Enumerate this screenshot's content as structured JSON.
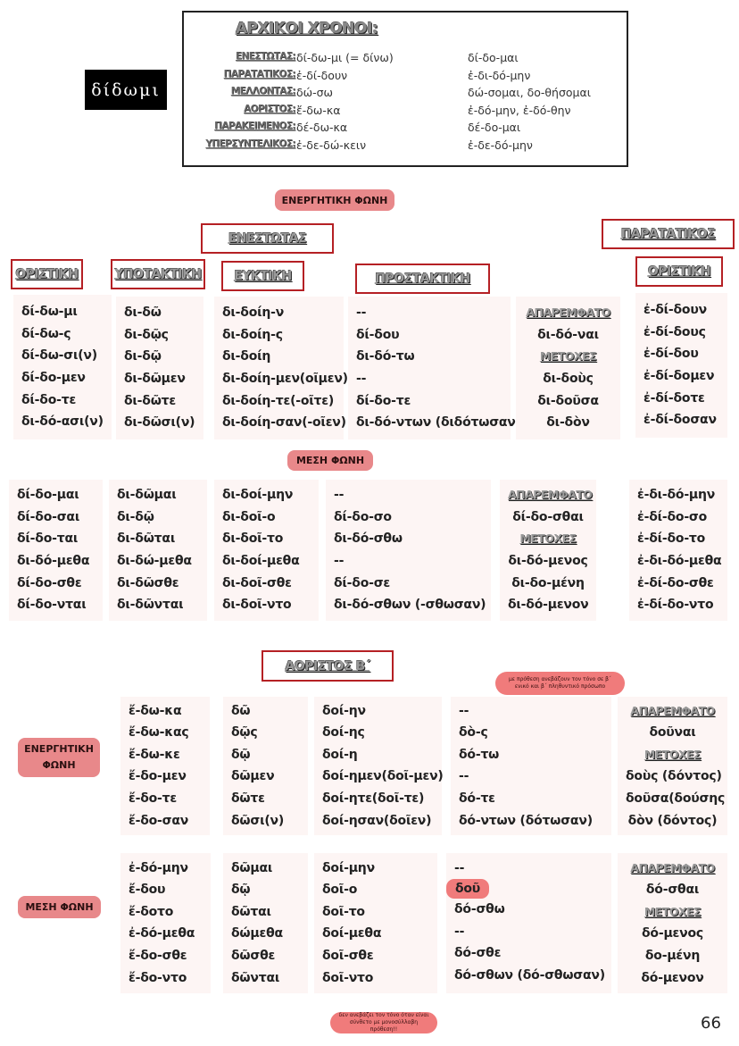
{
  "verb": "δίδωμι",
  "principal_parts": {
    "title": "ΑΡΧΙΚΟΙ ΧΡΟΝΟΙ:",
    "rows": [
      {
        "tense": "ΕΝΕΣΤΩΤΑΣ:",
        "active": "δί-δω-μι (= δίνω)",
        "middle": "δί-δο-μαι"
      },
      {
        "tense": "ΠΑΡΑΤΑΤΙΚΟΣ:",
        "active": "ἐ-δί-δουν",
        "middle": "ἐ-δι-δό-μην"
      },
      {
        "tense": "ΜΕΛΛΟΝΤΑΣ:",
        "active": "δώ-σω",
        "middle": "δώ-σομαι, δο-θήσομαι"
      },
      {
        "tense": "ΑΟΡΙΣΤΟΣ:",
        "active": "ἔ-δω-κα",
        "middle": "ἐ-δό-μην, ἐ-δό-θην"
      },
      {
        "tense": "ΠΑΡΑΚΕΙΜΕΝΟΣ:",
        "active": "δέ-δω-κα",
        "middle": "δέ-δο-μαι"
      },
      {
        "tense": "ΥΠΕΡΣΥΝΤΕΛΙΚΟΣ:",
        "active": "ἐ-δε-δώ-κειν",
        "middle": "ἐ-δε-δό-μην"
      }
    ]
  },
  "labels": {
    "active_voice": "ΕΝΕΡΓΗΤΙΚΗ ΦΩΝΗ",
    "middle_voice": "ΜΕΣΗ  ΦΩΝΗ",
    "middle_voice_short": "ΜΕΣΗ ΦΩΝΗ",
    "present": "ΕΝΕΣΤΩΤΑΣ",
    "imperfect": "ΠΑΡΑΤΑΤΙΚΟΣ",
    "aorist2": "ΑΟΡΙΣΤΟΣ Β΄",
    "indicative": "ΟΡΙΣΤΙΚΗ",
    "subjunctive": "ΥΠΟΤΑΚΤΙΚΗ",
    "optative": "ΕΥΚΤΙΚΗ",
    "imperative": "ΠΡΟΣΤΑΚΤΙΚΗ"
  },
  "present_active": {
    "indicative": [
      "δί-δω-μι",
      "δί-δω-ς",
      "δί-δω-σι(ν)",
      "δί-δο-μεν",
      "δί-δο-τε",
      "δι-δό-ασι(ν)"
    ],
    "subjunctive": [
      "δι-δῶ",
      "δι-δῷς",
      "δι-δῷ",
      "δι-δῶμεν",
      "δι-δῶτε",
      "δι-δῶσι(ν)"
    ],
    "optative": [
      "δι-δοίη-ν",
      "δι-δοίη-ς",
      "δι-δοίη",
      "δι-δοίη-μεν(οῖμεν)",
      "δι-δοίη-τε(-οῖτε)",
      "δι-δοίη-σαν(-οῖεν)"
    ],
    "imperative": [
      "--",
      "δί-δου",
      "δι-δό-τω",
      "--",
      "δί-δο-τε",
      "δι-δό-ντων (διδότωσαν)"
    ],
    "nonfinite": [
      "ΑΠΑΡΕΜΦΑΤΟ",
      "δι-δό-ναι",
      "ΜΕΤΟΧΕΣ",
      "δι-δοὺς",
      "δι-δοῦσα",
      "δι-δὸν"
    ]
  },
  "imperfect_active": [
    "ἐ-δί-δουν",
    "ἐ-δί-δους",
    "ἐ-δί-δου",
    "ἐ-δί-δομεν",
    "ἐ-δί-δοτε",
    "ἐ-δί-δοσαν"
  ],
  "present_middle": {
    "indicative": [
      "δί-δο-μαι",
      "δί-δο-σαι",
      "δί-δο-ται",
      "δι-δό-μεθα",
      "δί-δο-σθε",
      "δί-δο-νται"
    ],
    "subjunctive": [
      "δι-δῶμαι",
      "δι-δῷ",
      "δι-δῶται",
      "δι-δώ-μεθα",
      "δι-δῶσθε",
      "δι-δῶνται"
    ],
    "optative": [
      "δι-δοί-μην",
      "δι-δοῖ-ο",
      "δι-δοῖ-το",
      "δι-δοί-μεθα",
      "δι-δοῖ-σθε",
      "δι-δοῖ-ντο"
    ],
    "imperative": [
      "--",
      "δί-δο-σο",
      "δι-δό-σθω",
      "--",
      "δί-δο-σε",
      "δι-δό-σθων (-σθωσαν)"
    ],
    "nonfinite": [
      "ΑΠΑΡΕΜΦΑΤΟ",
      "δί-δο-σθαι",
      "ΜΕΤΟΧΕΣ",
      "δι-δό-μενος",
      "δι-δο-μένη",
      "δι-δό-μενον"
    ]
  },
  "imperfect_middle": [
    "ἐ-δι-δό-μην",
    "ἐ-δί-δο-σο",
    "ἐ-δί-δο-το",
    "ἐ-δι-δό-μεθα",
    "ἐ-δί-δο-σθε",
    "ἐ-δί-δο-ντο"
  ],
  "aorist_active": {
    "indicative": [
      "ἔ-δω-κα",
      "ἔ-δω-κας",
      "ἔ-δω-κε",
      "ἔ-δο-μεν",
      "ἔ-δο-τε",
      "ἔ-δο-σαν"
    ],
    "subjunctive": [
      "δῶ",
      "δῷς",
      "δῷ",
      "δῶμεν",
      "δῶτε",
      "δῶσι(ν)"
    ],
    "optative": [
      "δοί-ην",
      "δοί-ης",
      "δοί-η",
      "δοί-ημεν(δοῖ-μεν)",
      "δοί-ητε(δοῖ-τε)",
      "δοί-ησαν(δοῖεν)"
    ],
    "imperative": [
      "--",
      "δὸ-ς",
      "δό-τω",
      "--",
      "δό-τε",
      "δό-ντων (δότωσαν)"
    ],
    "nonfinite": [
      "ΑΠΑΡΕΜΦΑΤΟ",
      "δοῦναι",
      "ΜΕΤΟΧΕΣ",
      "δοὺς (δόντος)",
      "δοῦσα(δούσης",
      "δὸν (δόντος)"
    ]
  },
  "aorist_middle": {
    "indicative": [
      "ἐ-δό-μην",
      "ἔ-δου",
      "ἔ-δοτο",
      "ἐ-δό-μεθα",
      "ἔ-δο-σθε",
      "ἔ-δο-ντο"
    ],
    "subjunctive": [
      "δῶμαι",
      "δῷ",
      "δῶται",
      "δώμεθα",
      "δῶσθε",
      "δῶνται"
    ],
    "optative": [
      "δοί-μην",
      "δοῖ-ο",
      "δοῖ-το",
      "δοί-μεθα",
      "δοῖ-σθε",
      "δοῖ-ντο"
    ],
    "imperative": [
      "--",
      "δοῦ",
      "δό-σθω",
      "--",
      "δό-σθε",
      "δό-σθων (δό-σθωσαν)"
    ],
    "nonfinite": [
      "ΑΠΑΡΕΜΦΑΤΟ",
      "δό-σθαι",
      "ΜΕΤΟΧΕΣ",
      "δό-μενος",
      "δο-μένη",
      "δό-μενον"
    ]
  },
  "notes": {
    "accent_note": "με πρόθεση ανεβάζουν τον τόνο σε β΄ ενικό και β΄ πληθυντικό πρόσωπο",
    "compound_note": "δεν ανεβάζει τον τόνο όταν είναι σύνθετο με μονοσύλλαβη πρόθεση!!"
  },
  "page_number": "66",
  "colors": {
    "accent_red": "#b52024",
    "pill_pink": "#e8888a",
    "bubble_pink": "#f07b7b",
    "column_bg": "#fdf5f4"
  }
}
